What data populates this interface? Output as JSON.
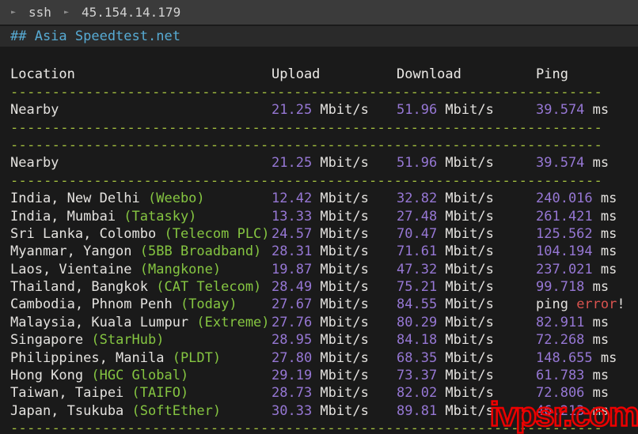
{
  "titlebar": {
    "arrow": "►",
    "ssh_label": "ssh",
    "host_ip": "45.154.14.179"
  },
  "section_title": "## Asia Speedtest.net",
  "table": {
    "columns": [
      "Location",
      "Upload",
      "Download",
      "Ping"
    ],
    "divider": "-----------------------------------------------------------------------",
    "unit_speed": "Mbit/s",
    "unit_ping": "ms",
    "ping_error": {
      "prefix": "ping ",
      "word": "error",
      "suffix": "!"
    },
    "nearby_rows": [
      {
        "location": "Nearby",
        "upload": "21.25",
        "download": "51.96",
        "ping": "39.574"
      },
      {
        "location": "Nearby",
        "upload": "21.25",
        "download": "51.96",
        "ping": "39.574"
      }
    ],
    "rows": [
      {
        "location": "India, New Delhi",
        "provider": "(Weebo)",
        "upload": "12.42",
        "download": "32.82",
        "ping": "240.016"
      },
      {
        "location": "India, Mumbai",
        "provider": "(Tatasky)",
        "upload": "13.33",
        "download": "27.48",
        "ping": "261.421"
      },
      {
        "location": "Sri Lanka, Colombo",
        "provider": "(Telecom PLC)",
        "upload": "24.57",
        "download": "70.47",
        "ping": "125.562"
      },
      {
        "location": "Myanmar, Yangon",
        "provider": "(5BB Broadband)",
        "upload": "28.31",
        "download": "71.61",
        "ping": "104.194"
      },
      {
        "location": "Laos, Vientaine",
        "provider": "(Mangkone)",
        "upload": "19.87",
        "download": "47.32",
        "ping": "237.021"
      },
      {
        "location": "Thailand, Bangkok",
        "provider": "(CAT Telecom)",
        "upload": "28.49",
        "download": "75.21",
        "ping": "99.718"
      },
      {
        "location": "Cambodia, Phnom Penh",
        "provider": "(Today)",
        "upload": "27.67",
        "download": "84.55",
        "ping_error": true
      },
      {
        "location": "Malaysia, Kuala Lumpur",
        "provider": "(Extreme)",
        "upload": "27.76",
        "download": "80.29",
        "ping": "82.911"
      },
      {
        "location": "Singapore",
        "provider": "(StarHub)",
        "upload": "28.95",
        "download": "84.18",
        "ping": "72.268"
      },
      {
        "location": "Philippines, Manila",
        "provider": "(PLDT)",
        "upload": "27.80",
        "download": "68.35",
        "ping": "148.655"
      },
      {
        "location": "Hong Kong",
        "provider": "(HGC Global)",
        "upload": "29.19",
        "download": "73.37",
        "ping": "61.783"
      },
      {
        "location": "Taiwan, Taipei",
        "provider": "(TAIFO)",
        "upload": "28.73",
        "download": "82.02",
        "ping": "72.806"
      },
      {
        "location": "Japan, Tsukuba",
        "provider": "(SoftEther)",
        "upload": "30.33",
        "download": "89.81",
        "ping": "46.213"
      }
    ]
  },
  "watermark": "ivpsr.com",
  "colors": {
    "titlebar_bg": "#3b3b3b",
    "strip_bg": "#2a2a2a",
    "terminal_bg": "#1a1a1a",
    "accent_cyan": "#57abd4",
    "value_purple": "#9677d4",
    "provider_green": "#85c541",
    "divider_green": "#a3bf3f",
    "error_red": "#d9534f",
    "watermark_red": "#ee0000",
    "text_white": "#e4e2df"
  }
}
